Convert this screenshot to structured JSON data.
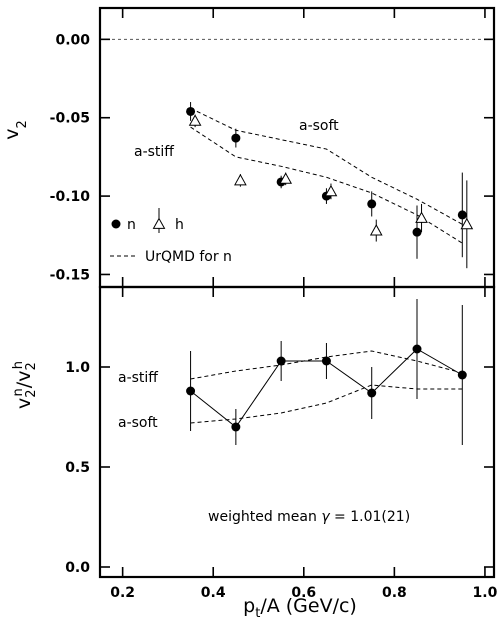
{
  "chart_data": [
    {
      "type": "scatter",
      "xlim": [
        0.15,
        1.02
      ],
      "ylim": [
        -0.158,
        0.02
      ],
      "ylabel": "v2",
      "xlabel": "",
      "yticks": [
        0.0,
        -0.05,
        -0.1,
        -0.15
      ],
      "ytick_labels": [
        "0.00",
        "-0.05",
        "-0.10",
        "-0.15"
      ],
      "reference_line": 0.0,
      "series": [
        {
          "name": "n",
          "marker": "filled-circle",
          "x": [
            0.35,
            0.45,
            0.55,
            0.65,
            0.75,
            0.85,
            0.95
          ],
          "y": [
            -0.046,
            -0.063,
            -0.091,
            -0.1,
            -0.105,
            -0.123,
            -0.112
          ],
          "yerr": [
            0.006,
            0.006,
            0.004,
            0.005,
            0.008,
            0.017,
            0.027
          ]
        },
        {
          "name": "h",
          "marker": "open-triangle",
          "x": [
            0.36,
            0.46,
            0.56,
            0.66,
            0.76,
            0.86,
            0.96
          ],
          "y": [
            -0.052,
            -0.09,
            -0.089,
            -0.097,
            -0.122,
            -0.114,
            -0.118
          ],
          "yerr": [
            0.004,
            0.004,
            0.004,
            0.005,
            0.007,
            0.009,
            0.028
          ]
        }
      ],
      "curves": [
        {
          "label": "a-soft",
          "style": "dashed",
          "x": [
            0.35,
            0.45,
            0.55,
            0.65,
            0.75,
            0.85,
            0.95
          ],
          "y": [
            -0.044,
            -0.058,
            -0.064,
            -0.07,
            -0.088,
            -0.102,
            -0.118
          ]
        },
        {
          "label": "a-stiff",
          "style": "dashed",
          "x": [
            0.35,
            0.45,
            0.55,
            0.65,
            0.75,
            0.85,
            0.95
          ],
          "y": [
            -0.056,
            -0.075,
            -0.081,
            -0.088,
            -0.098,
            -0.112,
            -0.13
          ]
        }
      ],
      "legend": [
        {
          "symbol": "filled-circle",
          "label": "n"
        },
        {
          "symbol": "open-triangle",
          "label": "h"
        },
        {
          "symbol": "dashed-line",
          "label": "UrQMD for n"
        }
      ],
      "legend_position": "bottom-left"
    },
    {
      "type": "line",
      "xlim": [
        0.15,
        1.02
      ],
      "ylim": [
        -0.05,
        1.4
      ],
      "ylabel": "v2n/v2h",
      "xlabel": "pt/A  (GeV/c)",
      "xticks": [
        0.2,
        0.4,
        0.6,
        0.8,
        1.0
      ],
      "xtick_labels": [
        "0.2",
        "0.4",
        "0.6",
        "0.8",
        "1.0"
      ],
      "yticks": [
        0.0,
        0.5,
        1.0
      ],
      "ytick_labels": [
        "0.0",
        "0.5",
        "1.0"
      ],
      "series": [
        {
          "name": "",
          "marker": "filled-circle",
          "connected": true,
          "x": [
            0.35,
            0.45,
            0.55,
            0.65,
            0.75,
            0.85,
            0.95
          ],
          "y": [
            0.88,
            0.7,
            1.03,
            1.03,
            0.87,
            1.09,
            0.96
          ],
          "yerr": [
            0.2,
            0.09,
            0.1,
            0.09,
            0.13,
            0.25,
            0.35
          ]
        }
      ],
      "curves": [
        {
          "label": "a-stiff",
          "style": "dashed",
          "x": [
            0.35,
            0.45,
            0.55,
            0.65,
            0.75,
            0.85,
            0.95
          ],
          "y": [
            0.94,
            0.98,
            1.01,
            1.05,
            1.08,
            1.03,
            0.97
          ]
        },
        {
          "label": "a-soft",
          "style": "dashed",
          "x": [
            0.35,
            0.45,
            0.55,
            0.65,
            0.75,
            0.85,
            0.95
          ],
          "y": [
            0.72,
            0.74,
            0.77,
            0.82,
            0.91,
            0.89,
            0.89
          ]
        }
      ],
      "annotation": {
        "text": "weighted mean",
        "symbol": "γ",
        "value": "= 1.01(21)"
      }
    }
  ]
}
